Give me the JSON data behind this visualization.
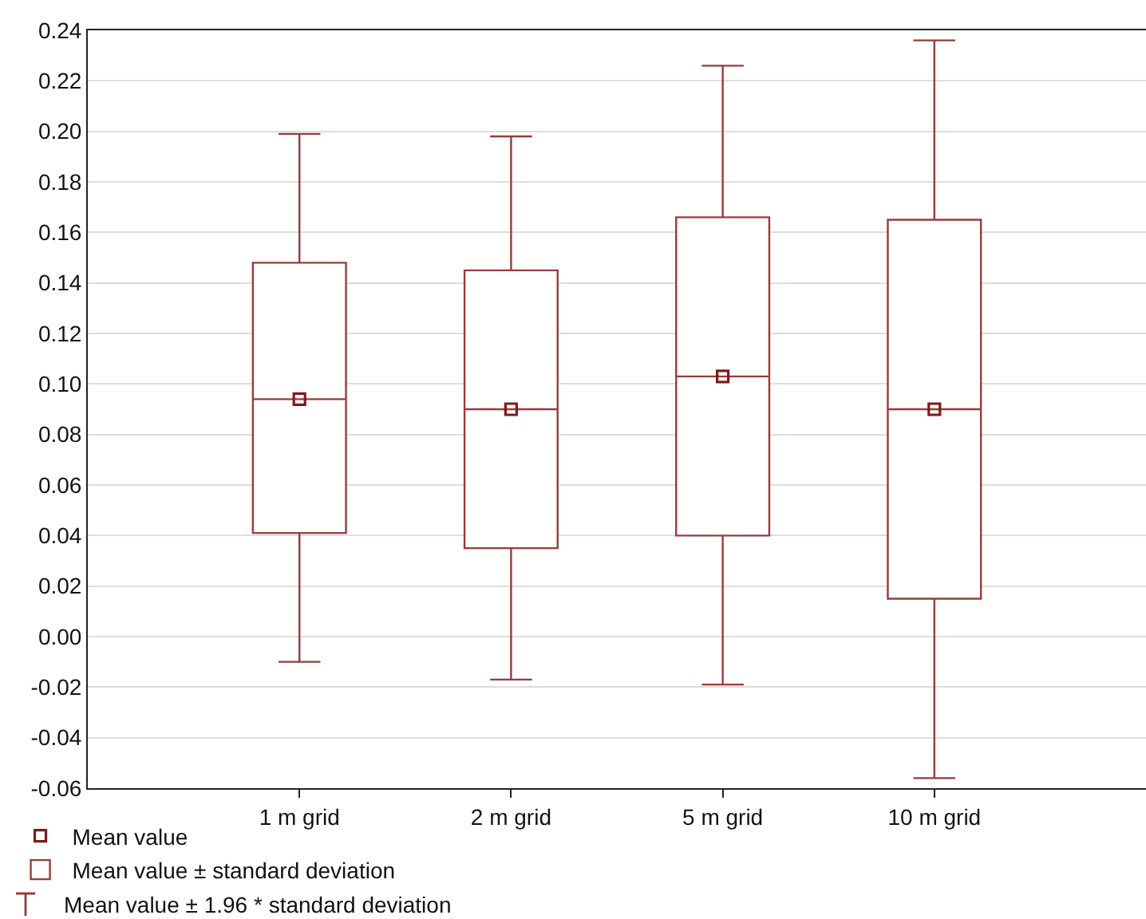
{
  "chart_data": {
    "type": "box",
    "categories": [
      "1 m grid",
      "2 m grid",
      "5 m grid",
      "10 m grid"
    ],
    "series": [
      {
        "name": "Mean value",
        "type": "scatter",
        "color": "#7b1c1c",
        "values": [
          0.094,
          0.09,
          0.103,
          0.09
        ]
      },
      {
        "name": "Mean value ± standard deviation",
        "color": "#9a3a3a",
        "boxes": [
          {
            "low": -0.01,
            "q1": 0.041,
            "median": 0.094,
            "q3": 0.148,
            "high": 0.199
          },
          {
            "low": -0.017,
            "q1": 0.035,
            "median": 0.09,
            "q3": 0.145,
            "high": 0.198
          },
          {
            "low": -0.019,
            "q1": 0.04,
            "median": 0.103,
            "q3": 0.166,
            "high": 0.226
          },
          {
            "low": -0.056,
            "q1": 0.015,
            "median": 0.09,
            "q3": 0.165,
            "high": 0.236
          }
        ]
      }
    ],
    "annotations": [
      "Mean value ± 1.96 * standard deviation"
    ],
    "ylim": [
      -0.06,
      0.24
    ],
    "yticks": [
      {
        "value": -0.06,
        "label": "-0.06"
      },
      {
        "value": -0.04,
        "label": "-0.04"
      },
      {
        "value": -0.02,
        "label": "-0.02"
      },
      {
        "value": 0,
        "label": "0.00"
      },
      {
        "value": 0.02,
        "label": "0.02"
      },
      {
        "value": 0.04,
        "label": "0.04"
      },
      {
        "value": 0.06,
        "label": "0.06"
      },
      {
        "value": 0.08,
        "label": "0.08"
      },
      {
        "value": 0.1,
        "label": "0.10"
      },
      {
        "value": 0.12,
        "label": "0.12"
      },
      {
        "value": 0.14,
        "label": "0.14"
      },
      {
        "value": 0.16,
        "label": "0.16"
      },
      {
        "value": 0.18,
        "label": "0.18"
      },
      {
        "value": 0.2,
        "label": "0.20"
      },
      {
        "value": 0.22,
        "label": "0.22"
      },
      {
        "value": 0.24,
        "label": "0.24"
      }
    ],
    "grid": "y",
    "legend": "bottom left",
    "marker": "square"
  }
}
